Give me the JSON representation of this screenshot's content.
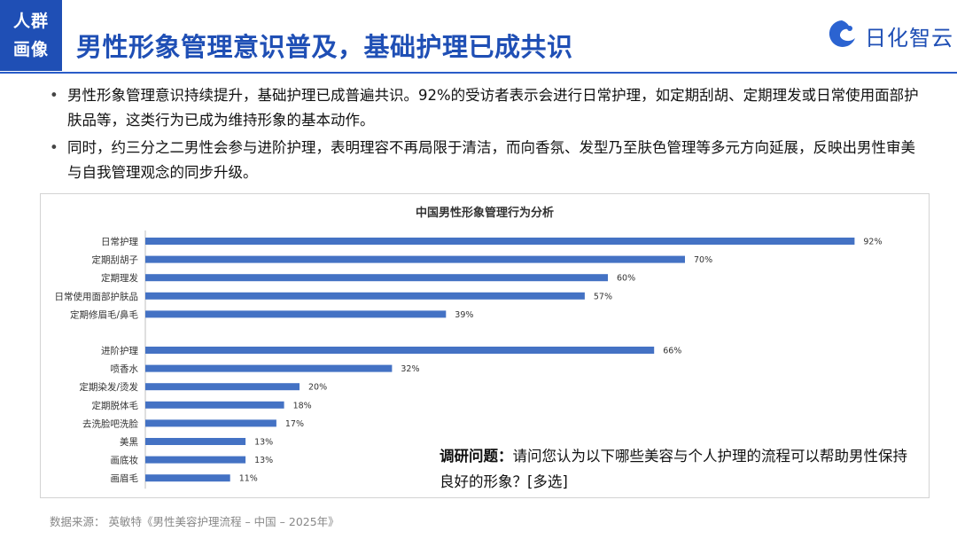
{
  "header": {
    "tag_line1": "人群",
    "tag_line2": "画像",
    "title": "男性形象管理意识普及，基础护理已成共识",
    "logo_text": "日化智云",
    "logo_icon": "cloud-wave-icon",
    "accent_color": "#1f4fb5"
  },
  "bullets": [
    "男性形象管理意识持续提升，基础护理已成普遍共识。92%的受访者表示会进行日常护理，如定期刮胡、定期理发或日常使用面部护肤品等，这类行为已成为维持形象的基本动作。",
    "同时，约三分之二男性会参与进阶护理，表明理容不再局限于清洁，而向香氛、发型乃至肤色管理等多元方向延展，反映出男性审美与自我管理观念的同步升级。"
  ],
  "survey": {
    "label": "调研问题：",
    "question": "请问您认为以下哪些美容与个人护理的流程可以帮助男性保持良好的形象？[多选]"
  },
  "source": "数据来源：  英敏特《男性美容护理流程 – 中国 – 2025年》",
  "chart_data": {
    "type": "bar",
    "orientation": "horizontal",
    "title": "中国男性形象管理行为分析",
    "categories": [
      "日常护理",
      "定期刮胡子",
      "定期理发",
      "日常使用面部护肤品",
      "定期修眉毛/鼻毛",
      "进阶护理",
      "喷香水",
      "定期染发/烫发",
      "定期脱体毛",
      "去洗脸吧洗脸",
      "美黑",
      "画底妆",
      "画眉毛"
    ],
    "values": [
      92,
      70,
      60,
      57,
      39,
      66,
      32,
      20,
      18,
      17,
      13,
      13,
      11
    ],
    "value_labels": [
      "92%",
      "70%",
      "60%",
      "57%",
      "39%",
      "66%",
      "32%",
      "20%",
      "18%",
      "17%",
      "13%",
      "13%",
      "11%"
    ],
    "group_break_after": 4,
    "xlim": [
      0,
      100
    ],
    "unit": "%",
    "bar_color": "#4472c4",
    "grid": false,
    "legend": "none"
  }
}
